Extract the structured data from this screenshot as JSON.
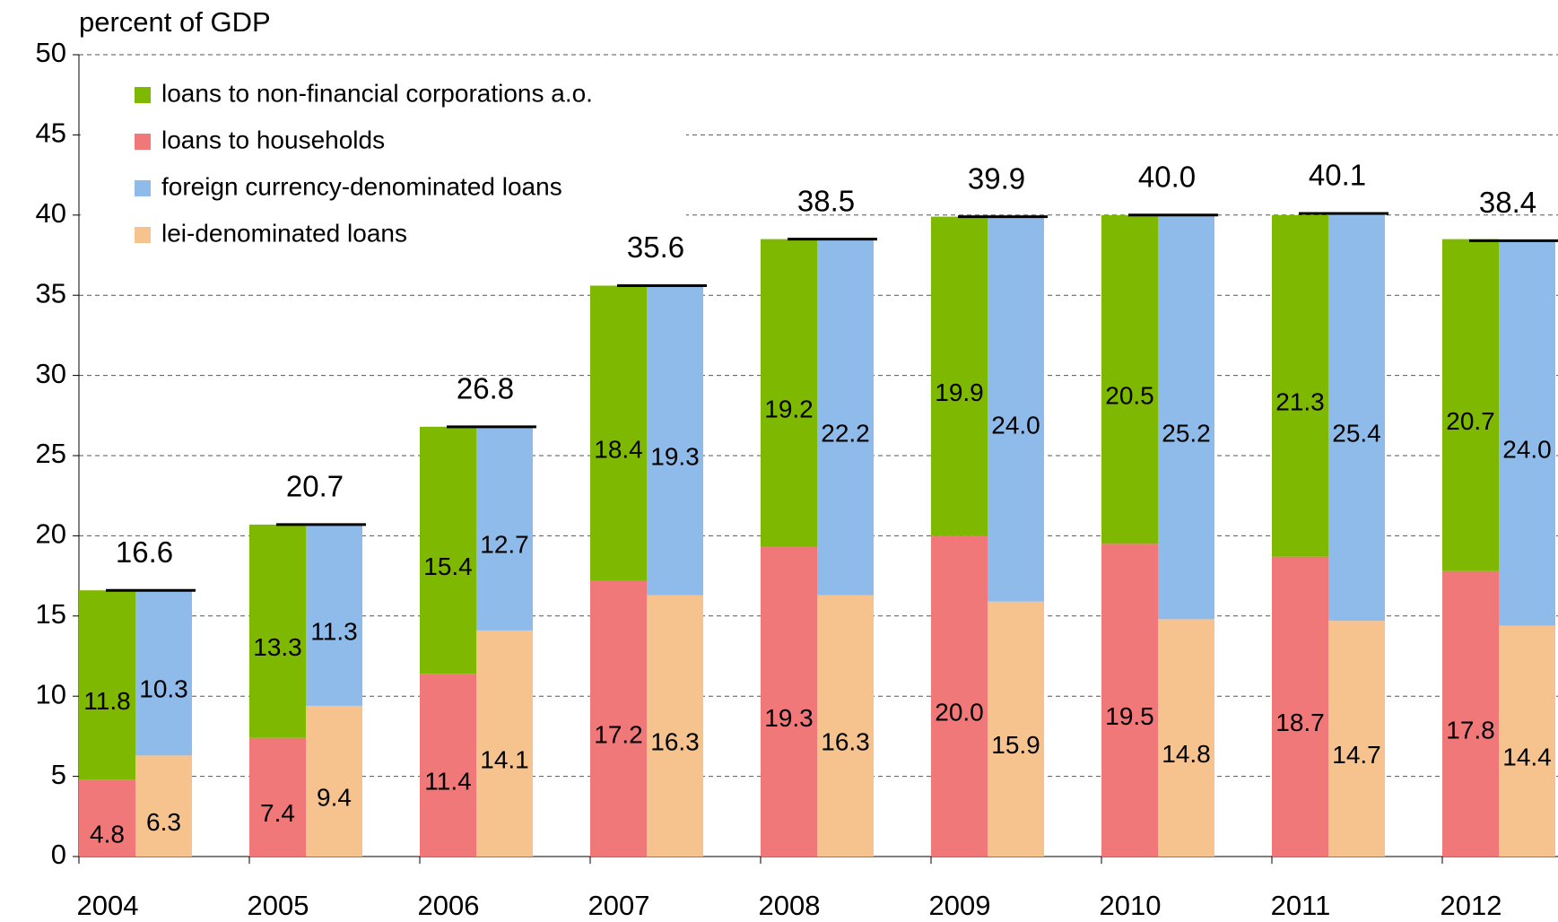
{
  "chart_data": {
    "type": "paired-stacked-bar",
    "y_label": "percent of GDP",
    "categories": [
      "2004",
      "2005",
      "2006",
      "2007",
      "2008",
      "2009",
      "2010",
      "2011",
      "2012"
    ],
    "series": [
      {
        "name": "loans to non-financial corporations a.o.",
        "color": "#7fb800",
        "stack": "left",
        "values": [
          11.8,
          13.3,
          15.4,
          18.4,
          19.2,
          19.9,
          20.5,
          21.3,
          20.7
        ],
        "value_labels": [
          "11.8",
          "13.3",
          "15.4",
          "18.4",
          "19.2",
          "19.9",
          "20.5",
          "21.3",
          "20.7"
        ]
      },
      {
        "name": "loans to households",
        "color": "#f07878",
        "stack": "left",
        "values": [
          4.8,
          7.4,
          11.4,
          17.2,
          19.3,
          20.0,
          19.5,
          18.7,
          17.8
        ],
        "value_labels": [
          "4.8",
          "7.4",
          "11.4",
          "17.2",
          "19.3",
          "20.0",
          "19.5",
          "18.7",
          "17.8"
        ]
      },
      {
        "name": "foreign currency-denominated loans",
        "color": "#8ebbe9",
        "stack": "right",
        "values": [
          10.3,
          11.3,
          12.7,
          19.3,
          22.2,
          24.0,
          25.2,
          25.4,
          24.0
        ],
        "value_labels": [
          "10.3",
          "11.3",
          "12.7",
          "19.3",
          "22.2",
          "24.0",
          "25.2",
          "25.4",
          "24.0"
        ]
      },
      {
        "name": "lei-denominated loans",
        "color": "#f6c38e",
        "stack": "right",
        "values": [
          6.3,
          9.4,
          14.1,
          16.3,
          16.3,
          15.9,
          14.8,
          14.7,
          14.4
        ],
        "value_labels": [
          "6.3",
          "9.4",
          "14.1",
          "16.3",
          "16.3",
          "15.9",
          "14.8",
          "14.7",
          "14.4"
        ]
      }
    ],
    "totals": {
      "values": [
        16.6,
        20.7,
        26.8,
        35.6,
        38.5,
        39.9,
        40.0,
        40.1,
        38.4
      ],
      "value_labels": [
        "16.6",
        "20.7",
        "26.8",
        "35.6",
        "38.5",
        "39.9",
        "40.0",
        "40.1",
        "38.4"
      ]
    },
    "ylim": [
      0,
      50
    ],
    "yticks": [
      0,
      5,
      10,
      15,
      20,
      25,
      30,
      35,
      40,
      45,
      50
    ],
    "grid": true
  }
}
